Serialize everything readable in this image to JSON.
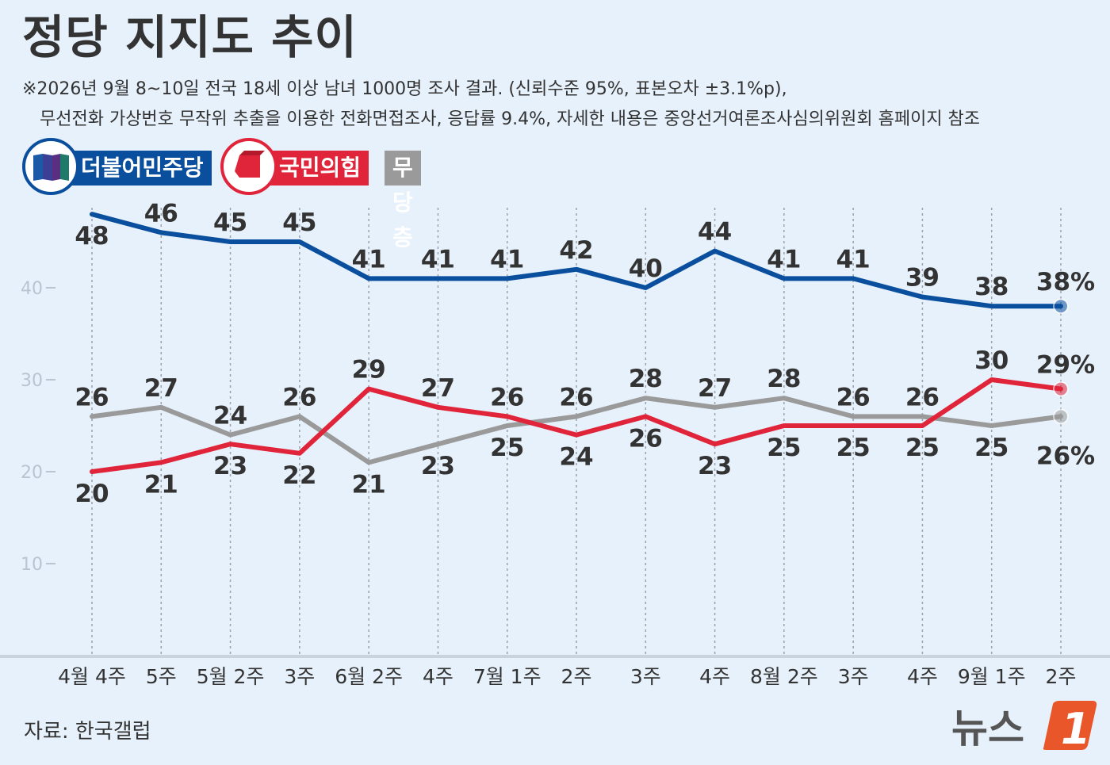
{
  "title": "정당 지지도 추이",
  "notes": [
    "※2026년 9월 8~10일 전국 18세 이상 남녀 1000명 조사 결과. (신뢰수준 95%, 표본오차 ±3.1%p),",
    "무선전화 가상번호 무작위 추출을 이용한 전화면접조사, 응답률 9.4%, 자세한 내용은 중앙선거여론조사심의위원회 홈페이지 참조"
  ],
  "legend": [
    {
      "name": "더불어민주당",
      "color": "#0a4f9e",
      "icon": "party-flag-icon"
    },
    {
      "name": "국민의힘",
      "color": "#e0243a",
      "icon": "party-logo-icon"
    },
    {
      "name": "무당층",
      "color": "#9a9a9a"
    }
  ],
  "source": "자료: 한국갤럽",
  "logo": {
    "text": "뉴스",
    "mark": "1"
  },
  "chart_data": {
    "type": "line",
    "categories": [
      "4월 4주",
      "5주",
      "5월 2주",
      "3주",
      "6월 2주",
      "4주",
      "7월 1주",
      "2주",
      "3주",
      "4주",
      "8월 2주",
      "3주",
      "4주",
      "9월 1주",
      "2주"
    ],
    "ylim": [
      0,
      55
    ],
    "yticks": [
      10,
      20,
      30,
      40
    ],
    "series": [
      {
        "name": "더불어민주당",
        "color": "#0a4f9e",
        "values": [
          48,
          46,
          45,
          45,
          41,
          41,
          41,
          42,
          40,
          44,
          41,
          41,
          39,
          38,
          38
        ],
        "last_label": "38%"
      },
      {
        "name": "국민의힘",
        "color": "#e0243a",
        "values": [
          20,
          21,
          23,
          22,
          29,
          27,
          26,
          24,
          26,
          23,
          25,
          25,
          25,
          30,
          29
        ],
        "last_label": "29%"
      },
      {
        "name": "무당층",
        "color": "#9a9a9a",
        "values": [
          26,
          27,
          24,
          26,
          21,
          23,
          25,
          26,
          28,
          27,
          28,
          26,
          26,
          25,
          26
        ],
        "last_label": "26%"
      }
    ]
  }
}
